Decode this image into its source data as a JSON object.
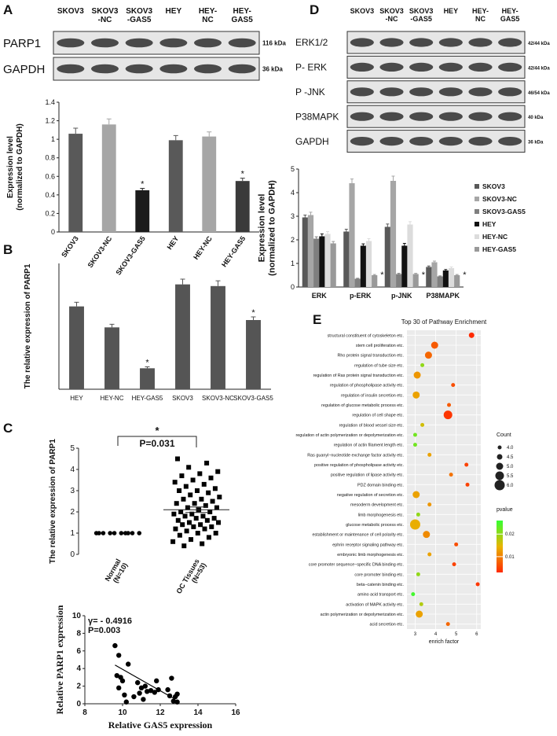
{
  "panels": [
    "A",
    "B",
    "C",
    "D",
    "E"
  ],
  "blots": [
    {
      "columns": [
        [
          "SKOV3"
        ],
        [
          "SKOV3",
          "-NC"
        ],
        [
          "SKOV3",
          "-GAS5"
        ],
        [
          "HEY"
        ],
        [
          "HEY-",
          "NC"
        ],
        [
          "HEY-",
          "GAS5"
        ]
      ],
      "rows": [
        {
          "label": "PARP1",
          "size": "116 kDa"
        },
        {
          "label": "GAPDH",
          "size": "36 kDa"
        }
      ]
    },
    {
      "columns": [
        [
          "SKOV3"
        ],
        [
          "SKOV3",
          "-NC"
        ],
        [
          "SKOV3",
          "-GAS5"
        ],
        [
          "HEY"
        ],
        [
          "HEY-",
          "NC"
        ],
        [
          "HEY-",
          "GAS5"
        ]
      ],
      "rows": [
        {
          "label": "ERK1/2",
          "size": "42/44 kDa"
        },
        {
          "label": "P- ERK",
          "size": "42/44 kDa"
        },
        {
          "label": "P -JNK",
          "size": "46/54 kDa"
        },
        {
          "label": "P38MAPK",
          "size": "40 kDa"
        },
        {
          "label": "GAPDH",
          "size": "36 kDa"
        }
      ]
    }
  ],
  "chart_data": [
    {
      "type": "bar",
      "ylabel": [
        "Expression level",
        "(normalized to GAPDH)"
      ],
      "categories": [
        "SKOV3",
        "SKOV3-NC",
        "SKOV3-GAS5",
        "HEY",
        "HEY-NC",
        "HEY-GAS5"
      ],
      "values": [
        1.06,
        1.16,
        0.45,
        0.99,
        1.03,
        0.55
      ],
      "errors": [
        0.06,
        0.06,
        0.02,
        0.05,
        0.05,
        0.03
      ],
      "colors": [
        "#595959",
        "#a6a6a6",
        "#1c1c1c",
        "#595959",
        "#a6a6a6",
        "#3a3a3a"
      ],
      "significance": [
        null,
        null,
        "*",
        null,
        null,
        "*"
      ],
      "ylim": [
        0,
        1.4
      ],
      "yticks": [
        0,
        0.2,
        0.4,
        0.6,
        0.8,
        1,
        1.2,
        1.4
      ]
    },
    {
      "type": "bar",
      "ylabel": "The relative expression of PARP1",
      "categories": [
        "HEY",
        "HEY-NC",
        "HEY-GAS5",
        "SKOV3",
        "SKOV3-NC",
        "SKOV3-GAS5"
      ],
      "values": [
        3.95,
        2.95,
        1.0,
        5.0,
        4.92,
        3.3
      ],
      "errors": [
        0.2,
        0.15,
        0.07,
        0.25,
        0.25,
        0.15
      ],
      "colors": [
        "#555555",
        "#555555",
        "#555555",
        "#555555",
        "#555555",
        "#555555"
      ],
      "significance": [
        null,
        null,
        "*",
        null,
        null,
        "*"
      ],
      "ylim": [
        0,
        6
      ]
    },
    {
      "type": "dot",
      "ylabel": "The relative expression of PARP1",
      "categories": [
        [
          "Normal",
          "(N=10)"
        ],
        [
          "OC Tissues",
          "(N=53)"
        ]
      ],
      "markers": [
        "circle",
        "square"
      ],
      "color": "#000000",
      "groups": [
        [
          1,
          1,
          1,
          1,
          1,
          1,
          1,
          1,
          1,
          1
        ],
        [
          4.5,
          4.3,
          4.1,
          3.9,
          3.8,
          3.7,
          3.6,
          3.5,
          3.4,
          3.3,
          3.2,
          3.1,
          3.0,
          3.0,
          2.9,
          2.8,
          2.7,
          2.6,
          2.6,
          2.5,
          2.4,
          2.4,
          2.3,
          2.2,
          2.2,
          2.1,
          2.0,
          2.0,
          1.9,
          1.9,
          1.8,
          1.8,
          1.7,
          1.7,
          1.6,
          1.6,
          1.5,
          1.5,
          1.4,
          1.4,
          1.3,
          1.3,
          1.2,
          1.2,
          1.1,
          1.0,
          1.0,
          0.9,
          0.8,
          0.7,
          0.6,
          0.5,
          0.4
        ]
      ],
      "mean": [
        null,
        2.1
      ],
      "sem": [
        null,
        0.13
      ],
      "significance": "*",
      "p_text": "P=0.031",
      "ylim": [
        0,
        5
      ],
      "yticks": [
        0,
        1,
        2,
        3,
        4,
        5
      ]
    },
    {
      "type": "scatter",
      "xlabel": "Relative GAS5 expression",
      "ylabel": "Relative PARP1 expression",
      "annotations": [
        "γ= - 0.4916",
        "P=0.003"
      ],
      "x": [
        9.6,
        9.8,
        9.7,
        9.9,
        10.0,
        10.1,
        10.2,
        10.3,
        9.8,
        10.6,
        10.8,
        10.9,
        11.0,
        11.1,
        11.2,
        11.3,
        11.5,
        11.7,
        11.8,
        11.9,
        12.4,
        12.5,
        12.6,
        12.7,
        12.8,
        12.9,
        12.9
      ],
      "y": [
        6.6,
        5.5,
        3.2,
        3.0,
        2.6,
        1.0,
        0.2,
        4.5,
        1.8,
        0.8,
        2.4,
        1.2,
        1.8,
        0.5,
        2.0,
        1.4,
        1.5,
        1.3,
        2.6,
        1.6,
        1.6,
        0.9,
        2.9,
        0.3,
        0.8,
        0.2,
        1.1
      ],
      "fit": {
        "x": [
          9.6,
          12.8
        ],
        "y": [
          4.4,
          0.5
        ]
      },
      "xlim": [
        8,
        16
      ],
      "xticks": [
        8,
        10,
        12,
        14,
        16
      ],
      "ylim": [
        0,
        10
      ],
      "yticks": [
        0,
        2,
        4,
        6,
        8,
        10
      ]
    },
    {
      "type": "grouped_bar",
      "ylabel": [
        "Expression level",
        "(normalized to GAPDH)"
      ],
      "categories": [
        "ERK",
        "p-ERK",
        "p-JNK",
        "P38MAPK"
      ],
      "series": [
        {
          "name": "SKOV3",
          "color": "#595959",
          "values": [
            2.95,
            2.35,
            2.55,
            0.85
          ],
          "errors": [
            0.1,
            0.1,
            0.12,
            0.04
          ]
        },
        {
          "name": "SKOV3-NC",
          "color": "#a6a6a6",
          "values": [
            3.05,
            4.4,
            4.5,
            1.05
          ],
          "errors": [
            0.12,
            0.18,
            0.2,
            0.05
          ]
        },
        {
          "name": "SKOV3-GAS5",
          "color": "#7f7f7f",
          "values": [
            2.05,
            0.35,
            0.55,
            0.45
          ],
          "errors": [
            0.08,
            0.02,
            0.03,
            0.02
          ]
        },
        {
          "name": "HEY",
          "color": "#111111",
          "values": [
            2.15,
            1.75,
            1.75,
            0.7
          ],
          "errors": [
            0.1,
            0.08,
            0.1,
            0.04
          ]
        },
        {
          "name": "HEY-NC",
          "color": "#dcdcdc",
          "values": [
            2.25,
            1.95,
            2.65,
            0.8
          ],
          "errors": [
            0.1,
            0.1,
            0.12,
            0.05
          ]
        },
        {
          "name": "HEY-GAS5",
          "color": "#999999",
          "values": [
            1.85,
            0.5,
            0.55,
            0.5
          ],
          "errors": [
            0.08,
            0.03,
            0.03,
            0.03
          ]
        }
      ],
      "significance": [
        null,
        "*",
        "*",
        "*"
      ],
      "legend": "right",
      "ylim": [
        0,
        5
      ],
      "yticks": [
        0,
        1,
        2,
        3,
        4,
        5
      ]
    },
    {
      "type": "bubble",
      "title": "Top 30 of Pathway Enrichment",
      "xlabel": "enrich factor",
      "background": "#ebebeb",
      "categories": [
        "structural constituent of cytoskeleton etc.",
        "stem cell proliferation etc.",
        "Rho protein signal transduction etc.",
        "regulation of tube size etc.",
        "regulation of Ras protein signal transduction etc.",
        "regulation of phospholipase activity etc.",
        "regulation of insulin secretion etc.",
        "regulation of glucose metabolic process etc.",
        "regulation of cell shape etc.",
        "regulation of blood vessel size etc.",
        "regulation of actin polymerization or depolymerization etc.",
        "regulation of actin filament length etc.",
        "Ras guanyl−nucleotide exchange factor activity etc.",
        "positive regulation of phospholipase activity etc.",
        "positive regulation of lipase activity etc.",
        "PDZ domain binding etc.",
        "negative regulation of secretion etc.",
        "mesoderm development etc.",
        "limb morphogenesis etc.",
        "glucose metabolic process etc.",
        "establishment or maintenance of cell polarity etc.",
        "ephrin receptor signaling pathway etc.",
        "embryonic limb morphogenesis etc.",
        "core promoter sequence−specific DNA binding etc.",
        "core promoter binding etc.",
        "beta−catenin binding etc.",
        "amino acid transport etc.",
        "activation of MAPK activity etc.",
        "actin polymerization or depolymerization etc.",
        "acid secretion etc."
      ],
      "x": [
        5.75,
        3.95,
        3.65,
        3.35,
        3.1,
        4.85,
        3.05,
        4.65,
        4.6,
        3.35,
        3.0,
        3.0,
        3.7,
        5.5,
        4.75,
        5.55,
        3.05,
        3.7,
        3.15,
        3.0,
        3.55,
        5.0,
        3.7,
        4.9,
        3.15,
        6.05,
        2.9,
        3.3,
        3.2,
        4.6
      ],
      "count": [
        4.5,
        5.0,
        5.0,
        4.0,
        5.0,
        4.0,
        5.0,
        4.0,
        5.5,
        4.0,
        4.0,
        4.0,
        4.0,
        4.0,
        4.0,
        4.0,
        5.0,
        4.0,
        4.0,
        6.0,
        5.0,
        4.0,
        4.0,
        4.0,
        4.0,
        4.0,
        4.0,
        4.0,
        5.0,
        4.0
      ],
      "pvalue": [
        0.003,
        0.007,
        0.008,
        0.02,
        0.012,
        0.006,
        0.013,
        0.007,
        0.004,
        0.016,
        0.022,
        0.022,
        0.013,
        0.005,
        0.009,
        0.005,
        0.013,
        0.012,
        0.02,
        0.014,
        0.011,
        0.006,
        0.013,
        0.005,
        0.02,
        0.004,
        0.025,
        0.018,
        0.013,
        0.008
      ],
      "xlim": [
        2.6,
        6.2
      ],
      "xticks": [
        3,
        4,
        5,
        6
      ],
      "size_legend": {
        "title": "Count",
        "values": [
          {
            "value": 4.0,
            "label": "4.0"
          },
          {
            "value": 4.5,
            "label": "4.5"
          },
          {
            "value": 5.0,
            "label": "5.0"
          },
          {
            "value": 5.5,
            "label": "5.5"
          },
          {
            "value": 6.0,
            "label": "6.0"
          }
        ]
      },
      "color_legend": {
        "title": "pvalue",
        "clim": [
          0.003,
          0.026
        ],
        "ticks": [
          0.01,
          0.02
        ],
        "colors": [
          "#ff2a00",
          "#e8b400",
          "#33ff33"
        ]
      }
    }
  ]
}
